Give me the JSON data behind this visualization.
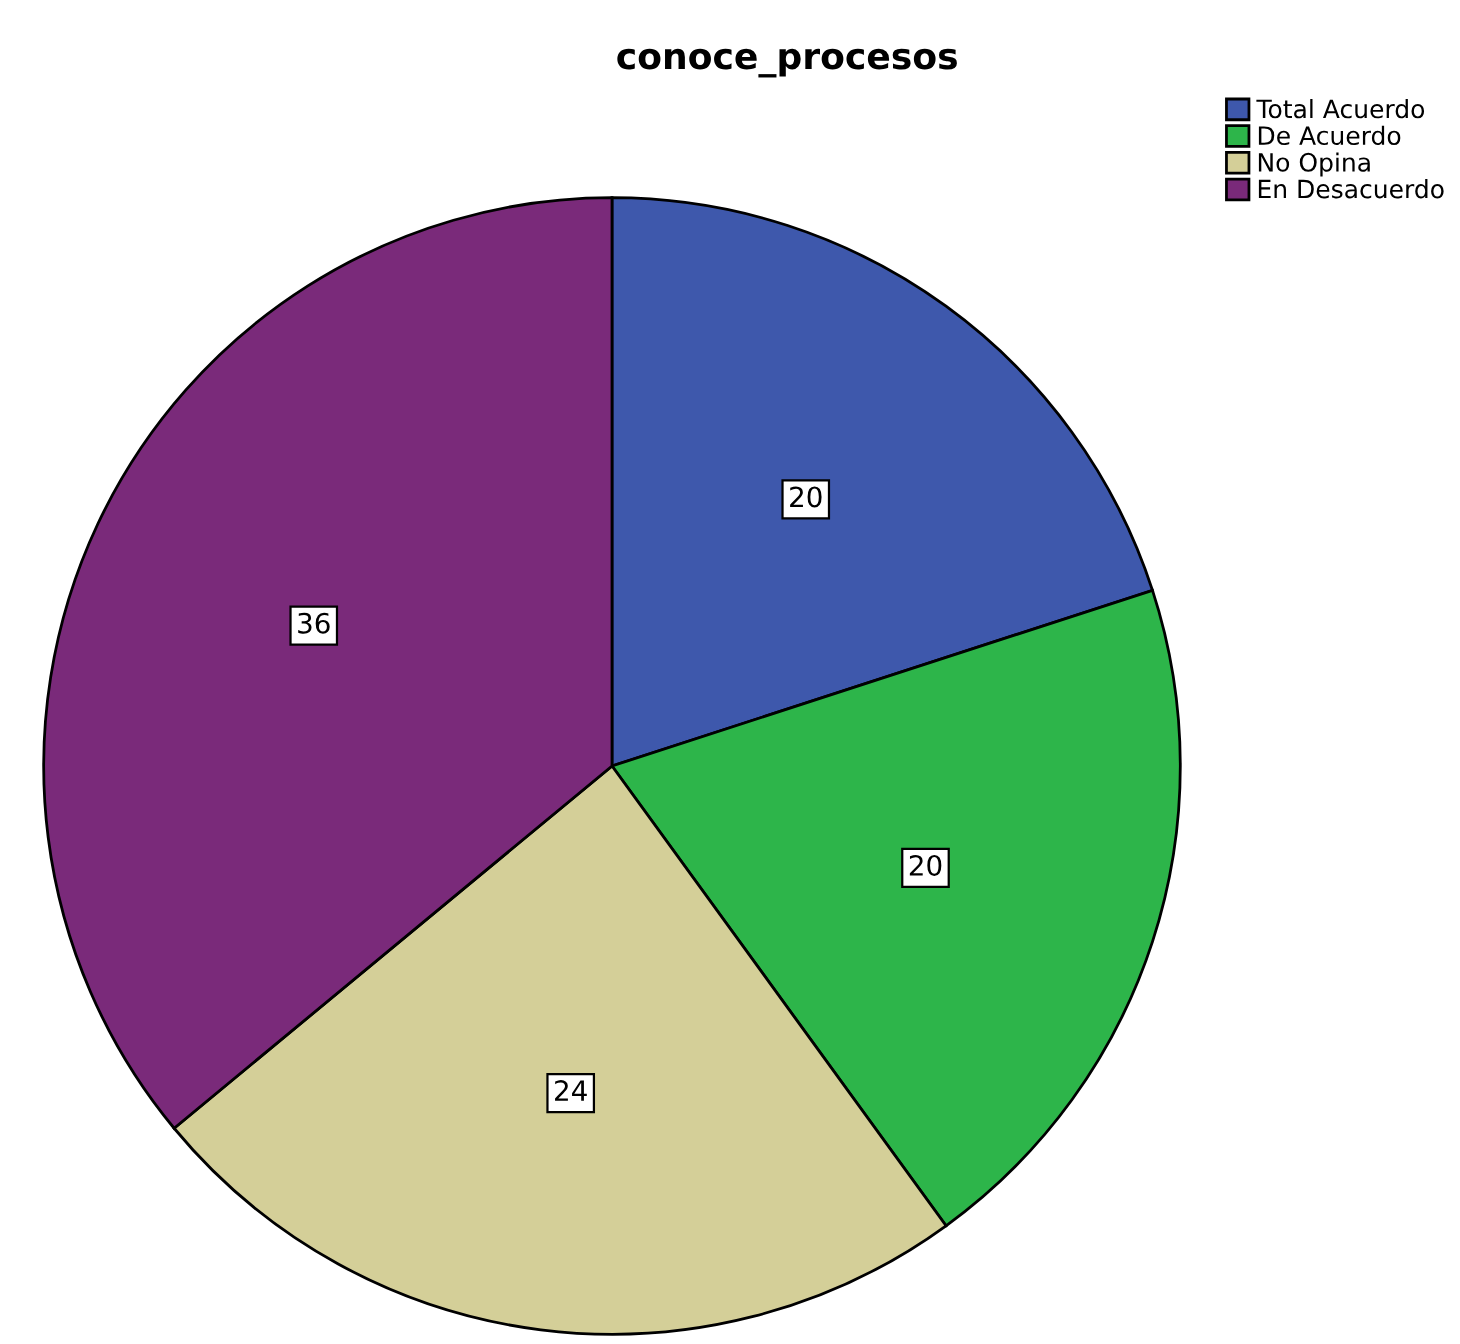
{
  "chart_data": {
    "type": "pie",
    "title": "conoce_procesos",
    "categories": [
      "Total Acuerdo",
      "De Acuerdo",
      "No Opina",
      "En Desacuerdo"
    ],
    "values": [
      20,
      20,
      24,
      36
    ],
    "colors": [
      "#3e58ac",
      "#2db54a",
      "#d4cf98",
      "#7a2a7a"
    ],
    "data_labels": true,
    "legend": "top right"
  }
}
